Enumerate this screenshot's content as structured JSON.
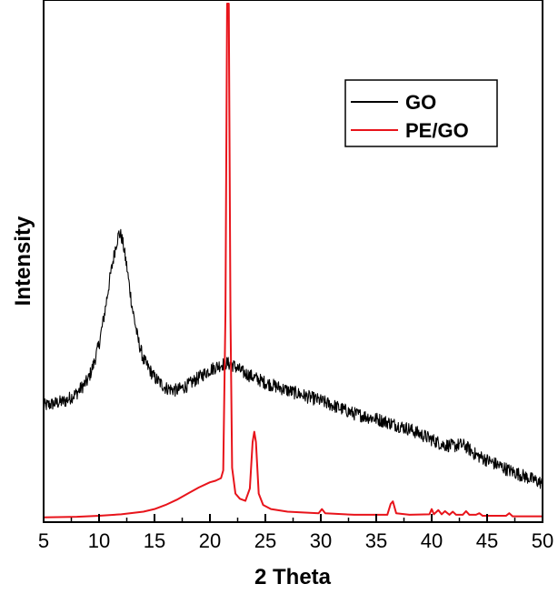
{
  "chart_data": {
    "type": "line",
    "title": "",
    "xlabel": "2 Theta",
    "ylabel": "Intensity",
    "xlim": [
      5,
      50
    ],
    "ylim": [
      0,
      100
    ],
    "x_ticks": [
      5,
      10,
      15,
      20,
      25,
      30,
      35,
      40,
      45,
      50
    ],
    "y_ticks_visible": false,
    "grid": false,
    "legend": {
      "position": "top-right",
      "entries": [
        {
          "name": "GO",
          "color": "#000000"
        },
        {
          "name": "PE/GO",
          "color": "#e8141b"
        }
      ]
    },
    "series": [
      {
        "name": "GO",
        "color": "#000000",
        "noisy": true,
        "x": [
          5,
          6,
          7,
          8,
          9,
          9.5,
          10,
          10.5,
          11,
          11.5,
          11.8,
          12,
          12.2,
          12.5,
          13,
          13.5,
          14,
          15,
          16,
          17,
          18,
          19,
          20,
          21,
          21.5,
          22,
          23,
          24,
          25,
          27,
          30,
          33,
          35,
          38,
          40,
          41,
          42,
          42.5,
          43,
          44,
          45,
          47,
          50
        ],
        "y": [
          22,
          22.5,
          23,
          24.5,
          27,
          30,
          34,
          40,
          47,
          53,
          55.5,
          55,
          53,
          49,
          41,
          35,
          31,
          27.5,
          25.5,
          25,
          26,
          27.5,
          29,
          30,
          30.3,
          30,
          28.5,
          27.5,
          26.5,
          25,
          23,
          20.5,
          19.5,
          17.5,
          15.5,
          14.5,
          14.2,
          14.5,
          14.3,
          12.5,
          11.5,
          9.5,
          7
        ]
      },
      {
        "name": "PE/GO",
        "color": "#e8141b",
        "noisy": false,
        "x": [
          5,
          8,
          10,
          12,
          14,
          15,
          16,
          17,
          18,
          19,
          20,
          20.5,
          21,
          21.2,
          21.4,
          21.55,
          21.7,
          21.85,
          22,
          22.3,
          22.7,
          23.2,
          23.6,
          23.85,
          24,
          24.15,
          24.4,
          24.8,
          25.5,
          27,
          29.8,
          30.1,
          30.4,
          33,
          36,
          36.3,
          36.5,
          36.8,
          38,
          39.8,
          40,
          40.2,
          40.6,
          40.9,
          41.2,
          41.6,
          41.9,
          42.2,
          42.8,
          43.1,
          43.4,
          44,
          44.3,
          44.6,
          46.7,
          47,
          47.3,
          50
        ],
        "y": [
          0.4,
          0.5,
          0.7,
          1,
          1.5,
          2,
          2.8,
          3.8,
          5,
          6.2,
          7.2,
          7.5,
          8,
          9.5,
          40,
          100,
          100,
          40,
          10,
          5,
          4,
          3.6,
          6,
          15,
          17,
          15,
          5,
          2.8,
          2,
          1.5,
          1.2,
          2,
          1.2,
          0.9,
          0.9,
          3,
          3.5,
          1.2,
          0.9,
          1,
          2,
          1,
          1.8,
          1,
          1.6,
          0.9,
          1.5,
          0.9,
          0.9,
          1.6,
          0.9,
          0.9,
          1.2,
          0.7,
          0.7,
          1.2,
          0.6,
          0.6
        ]
      }
    ]
  }
}
